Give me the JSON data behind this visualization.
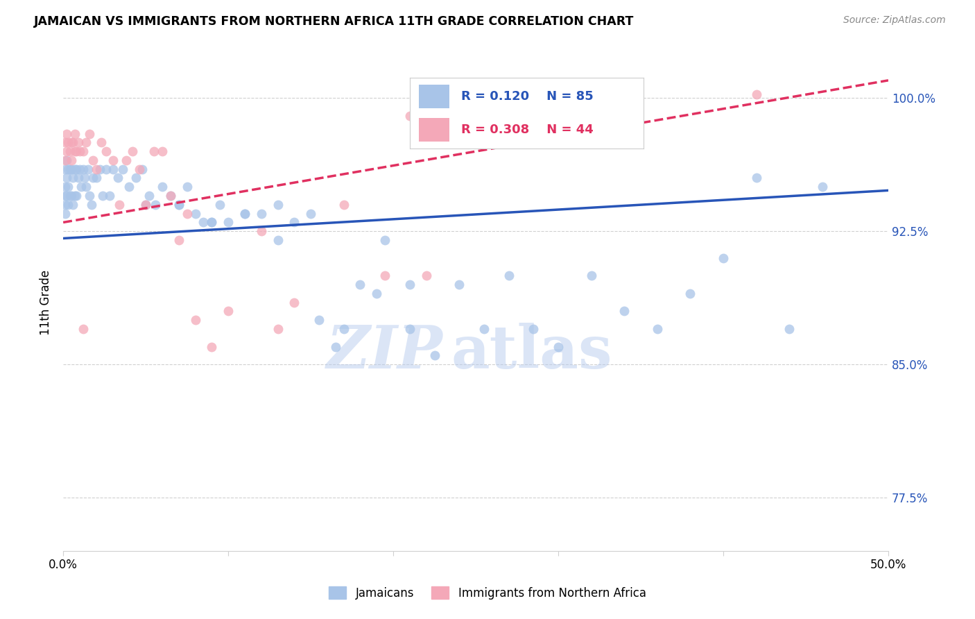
{
  "title": "JAMAICAN VS IMMIGRANTS FROM NORTHERN AFRICA 11TH GRADE CORRELATION CHART",
  "source": "Source: ZipAtlas.com",
  "ylabel": "11th Grade",
  "yticks": [
    0.775,
    0.85,
    0.925,
    1.0
  ],
  "ytick_labels": [
    "77.5%",
    "85.0%",
    "92.5%",
    "100.0%"
  ],
  "xmin": 0.0,
  "xmax": 0.5,
  "ymin": 0.745,
  "ymax": 1.025,
  "legend_blue_R": "0.120",
  "legend_blue_N": "85",
  "legend_pink_R": "0.308",
  "legend_pink_N": "44",
  "blue_color": "#a8c4e8",
  "pink_color": "#f4a8b8",
  "blue_line_color": "#2855b8",
  "pink_line_color": "#e03060",
  "watermark_zip": "ZIP",
  "watermark_atlas": "atlas",
  "blue_line_x0": 0.0,
  "blue_line_y0": 0.921,
  "blue_line_x1": 0.5,
  "blue_line_y1": 0.948,
  "pink_line_x0": 0.0,
  "pink_line_y0": 0.93,
  "pink_line_x1": 0.5,
  "pink_line_y1": 1.01,
  "blue_scatter_x": [
    0.001,
    0.001,
    0.001,
    0.001,
    0.001,
    0.002,
    0.002,
    0.002,
    0.003,
    0.003,
    0.003,
    0.004,
    0.004,
    0.005,
    0.005,
    0.006,
    0.006,
    0.007,
    0.007,
    0.008,
    0.008,
    0.009,
    0.01,
    0.011,
    0.012,
    0.013,
    0.014,
    0.015,
    0.016,
    0.017,
    0.018,
    0.02,
    0.022,
    0.024,
    0.026,
    0.028,
    0.03,
    0.033,
    0.036,
    0.04,
    0.044,
    0.048,
    0.052,
    0.056,
    0.06,
    0.065,
    0.07,
    0.075,
    0.08,
    0.085,
    0.09,
    0.095,
    0.1,
    0.11,
    0.12,
    0.13,
    0.14,
    0.155,
    0.165,
    0.18,
    0.195,
    0.21,
    0.225,
    0.24,
    0.255,
    0.27,
    0.285,
    0.3,
    0.32,
    0.34,
    0.36,
    0.38,
    0.4,
    0.42,
    0.44,
    0.46,
    0.05,
    0.07,
    0.09,
    0.11,
    0.13,
    0.15,
    0.17,
    0.19,
    0.21
  ],
  "blue_scatter_y": [
    0.96,
    0.95,
    0.945,
    0.94,
    0.935,
    0.965,
    0.955,
    0.945,
    0.96,
    0.95,
    0.94,
    0.96,
    0.945,
    0.96,
    0.945,
    0.955,
    0.94,
    0.96,
    0.945,
    0.96,
    0.945,
    0.955,
    0.96,
    0.95,
    0.96,
    0.955,
    0.95,
    0.96,
    0.945,
    0.94,
    0.955,
    0.955,
    0.96,
    0.945,
    0.96,
    0.945,
    0.96,
    0.955,
    0.96,
    0.95,
    0.955,
    0.96,
    0.945,
    0.94,
    0.95,
    0.945,
    0.94,
    0.95,
    0.935,
    0.93,
    0.93,
    0.94,
    0.93,
    0.935,
    0.935,
    0.92,
    0.93,
    0.875,
    0.86,
    0.895,
    0.92,
    0.87,
    0.855,
    0.895,
    0.87,
    0.9,
    0.87,
    0.86,
    0.9,
    0.88,
    0.87,
    0.89,
    0.91,
    0.955,
    0.87,
    0.95,
    0.94,
    0.94,
    0.93,
    0.935,
    0.94,
    0.935,
    0.87,
    0.89,
    0.895
  ],
  "pink_scatter_x": [
    0.001,
    0.001,
    0.002,
    0.002,
    0.003,
    0.004,
    0.005,
    0.005,
    0.006,
    0.007,
    0.007,
    0.008,
    0.009,
    0.01,
    0.012,
    0.014,
    0.016,
    0.018,
    0.02,
    0.023,
    0.026,
    0.03,
    0.034,
    0.038,
    0.042,
    0.046,
    0.05,
    0.055,
    0.06,
    0.065,
    0.07,
    0.075,
    0.08,
    0.09,
    0.1,
    0.12,
    0.14,
    0.17,
    0.195,
    0.21,
    0.13,
    0.42,
    0.012,
    0.22
  ],
  "pink_scatter_y": [
    0.965,
    0.975,
    0.97,
    0.98,
    0.975,
    0.97,
    0.965,
    0.975,
    0.975,
    0.97,
    0.98,
    0.97,
    0.975,
    0.97,
    0.97,
    0.975,
    0.98,
    0.965,
    0.96,
    0.975,
    0.97,
    0.965,
    0.94,
    0.965,
    0.97,
    0.96,
    0.94,
    0.97,
    0.97,
    0.945,
    0.92,
    0.935,
    0.875,
    0.86,
    0.88,
    0.925,
    0.885,
    0.94,
    0.9,
    0.99,
    0.87,
    1.002,
    0.87,
    0.9
  ]
}
